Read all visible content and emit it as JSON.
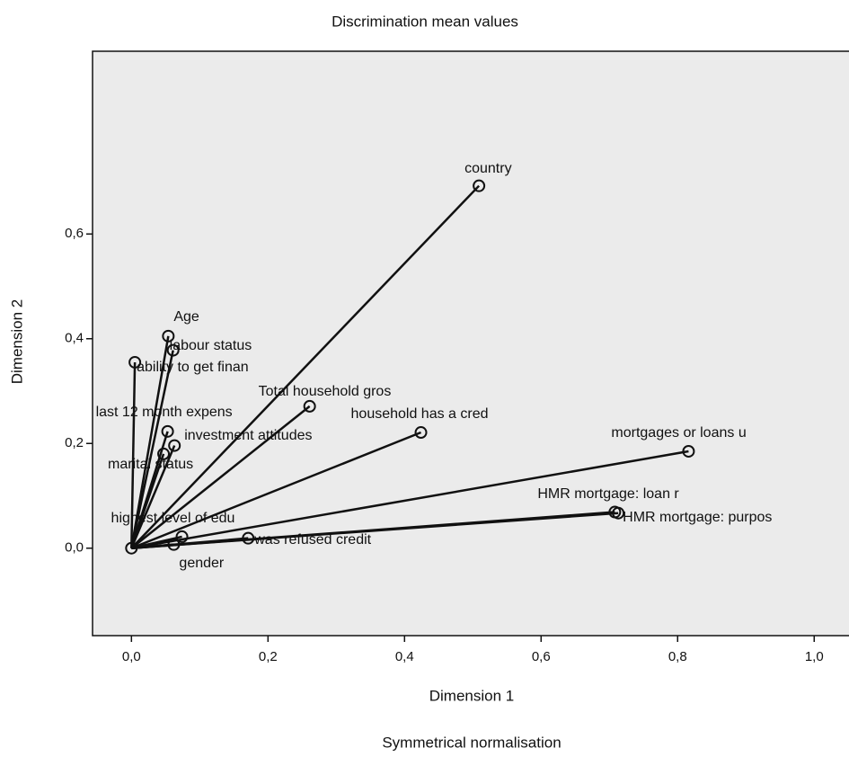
{
  "chart_data": {
    "type": "scatter",
    "title": "Discrimination mean values",
    "subtitle": "Symmetrical normalisation",
    "x_label": "Dimension 1",
    "y_label": "Dimension 2",
    "xlim": [
      -0.057,
      1.051
    ],
    "ylim": [
      -0.167,
      0.949
    ],
    "xticks": [
      {
        "value": 0.0,
        "label": "0,0"
      },
      {
        "value": 0.2,
        "label": "0,2"
      },
      {
        "value": 0.4,
        "label": "0,4"
      },
      {
        "value": 0.6,
        "label": "0,6"
      },
      {
        "value": 0.8,
        "label": "0,8"
      },
      {
        "value": 1.0,
        "label": "1,0"
      }
    ],
    "yticks": [
      {
        "value": 0.0,
        "label": "0,0"
      },
      {
        "value": 0.2,
        "label": "0,2"
      },
      {
        "value": 0.4,
        "label": "0,4"
      },
      {
        "value": 0.6,
        "label": "0,6"
      }
    ],
    "color": "#111111",
    "points": [
      {
        "label": "country",
        "x": 0.509,
        "y": 0.692
      },
      {
        "label": "Age",
        "x": 0.054,
        "y": 0.405
      },
      {
        "label": "labour status",
        "x": 0.061,
        "y": 0.378
      },
      {
        "label": "ability to get finan",
        "x": 0.005,
        "y": 0.355
      },
      {
        "label": "Total household gros",
        "x": 0.261,
        "y": 0.271
      },
      {
        "label": "household has a cred",
        "x": 0.424,
        "y": 0.221
      },
      {
        "label": "last 12 month expens",
        "x": 0.053,
        "y": 0.223
      },
      {
        "label": "investment attitudes",
        "x": 0.063,
        "y": 0.196
      },
      {
        "label": "marital status",
        "x": 0.047,
        "y": 0.18
      },
      {
        "label": "mortgages or loans u",
        "x": 0.816,
        "y": 0.185
      },
      {
        "label": "HMR mortgage: loan r",
        "x": 0.708,
        "y": 0.069
      },
      {
        "label": "HMR mortgage: purpos",
        "x": 0.713,
        "y": 0.067
      },
      {
        "label": "highest level of edu",
        "x": 0.074,
        "y": 0.022
      },
      {
        "label": "was refused credit",
        "x": 0.171,
        "y": 0.019
      },
      {
        "label": "gender",
        "x": 0.062,
        "y": 0.007
      }
    ]
  }
}
